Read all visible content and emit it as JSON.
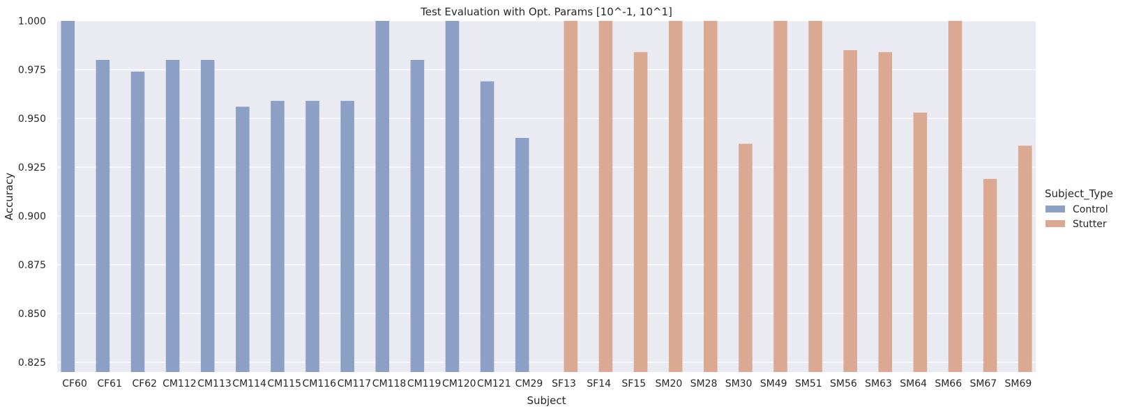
{
  "chart_data": {
    "type": "bar",
    "title": "Test Evaluation with Opt. Params [10^-1, 10^1]",
    "xlabel": "Subject",
    "ylabel": "Accuracy",
    "ylim": [
      0.82,
      1.0
    ],
    "yticks": [
      "0.825",
      "0.850",
      "0.875",
      "0.900",
      "0.925",
      "0.950",
      "0.975",
      "1.000"
    ],
    "ytick_values": [
      0.825,
      0.85,
      0.875,
      0.9,
      0.925,
      0.95,
      0.975,
      1.0
    ],
    "grid": true,
    "legend": {
      "title": "Subject_Type",
      "placement": "right"
    },
    "categories": [
      "CF60",
      "CF61",
      "CF62",
      "CM112",
      "CM113",
      "CM114",
      "CM115",
      "CM116",
      "CM117",
      "CM118",
      "CM119",
      "CM120",
      "CM121",
      "CM29",
      "SF13",
      "SF14",
      "SF15",
      "SM20",
      "SM28",
      "SM30",
      "SM49",
      "SM51",
      "SM56",
      "SM63",
      "SM64",
      "SM66",
      "SM67",
      "SM69"
    ],
    "series": [
      {
        "name": "Control",
        "color": "#8c9fc4",
        "values": [
          1.0,
          0.98,
          0.974,
          0.98,
          0.98,
          0.956,
          0.959,
          0.959,
          0.959,
          1.0,
          0.98,
          1.0,
          0.969,
          0.94,
          null,
          null,
          null,
          null,
          null,
          null,
          null,
          null,
          null,
          null,
          null,
          null,
          null,
          null
        ]
      },
      {
        "name": "Stutter",
        "color": "#dba892",
        "values": [
          null,
          null,
          null,
          null,
          null,
          null,
          null,
          null,
          null,
          null,
          null,
          null,
          null,
          null,
          1.0,
          1.0,
          0.984,
          1.0,
          1.0,
          0.937,
          1.0,
          1.0,
          0.985,
          0.984,
          0.953,
          1.0,
          0.919,
          0.936
        ]
      }
    ],
    "background_color": "#eaeaf2",
    "grid_color": "#ffffff"
  }
}
